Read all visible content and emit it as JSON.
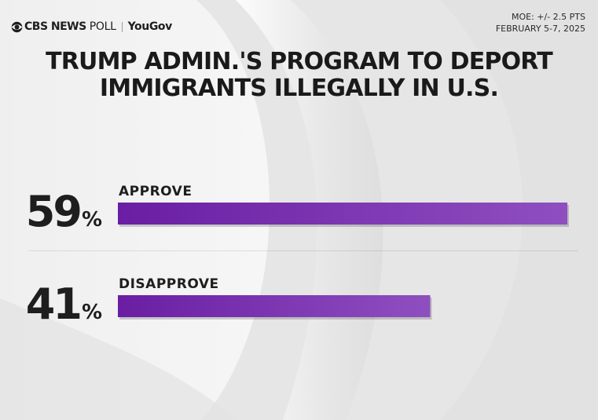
{
  "header": {
    "brand_cbs": "CBS NEWS",
    "brand_poll": "POLL",
    "brand_partner": "YouGov"
  },
  "meta": {
    "moe": "MOE: +/- 2.5 PTS",
    "dates": "FEBRUARY 5-7, 2025"
  },
  "colors": {
    "bar_start": "#6a1ea3",
    "bar_end": "#8f4fc0",
    "text_dark": "#1e1e1e"
  },
  "chart_data": {
    "type": "bar",
    "orientation": "horizontal",
    "title_lines": [
      "TRUMP ADMIN.'S PROGRAM TO DEPORT",
      "IMMIGRANTS ILLEGALLY IN U.S."
    ],
    "categories": [
      "APPROVE",
      "DISAPPROVE"
    ],
    "values": [
      59,
      41
    ],
    "value_labels": [
      "59",
      "41"
    ],
    "unit": "%",
    "xlim": [
      0,
      59
    ],
    "grid": false,
    "legend": "none"
  }
}
